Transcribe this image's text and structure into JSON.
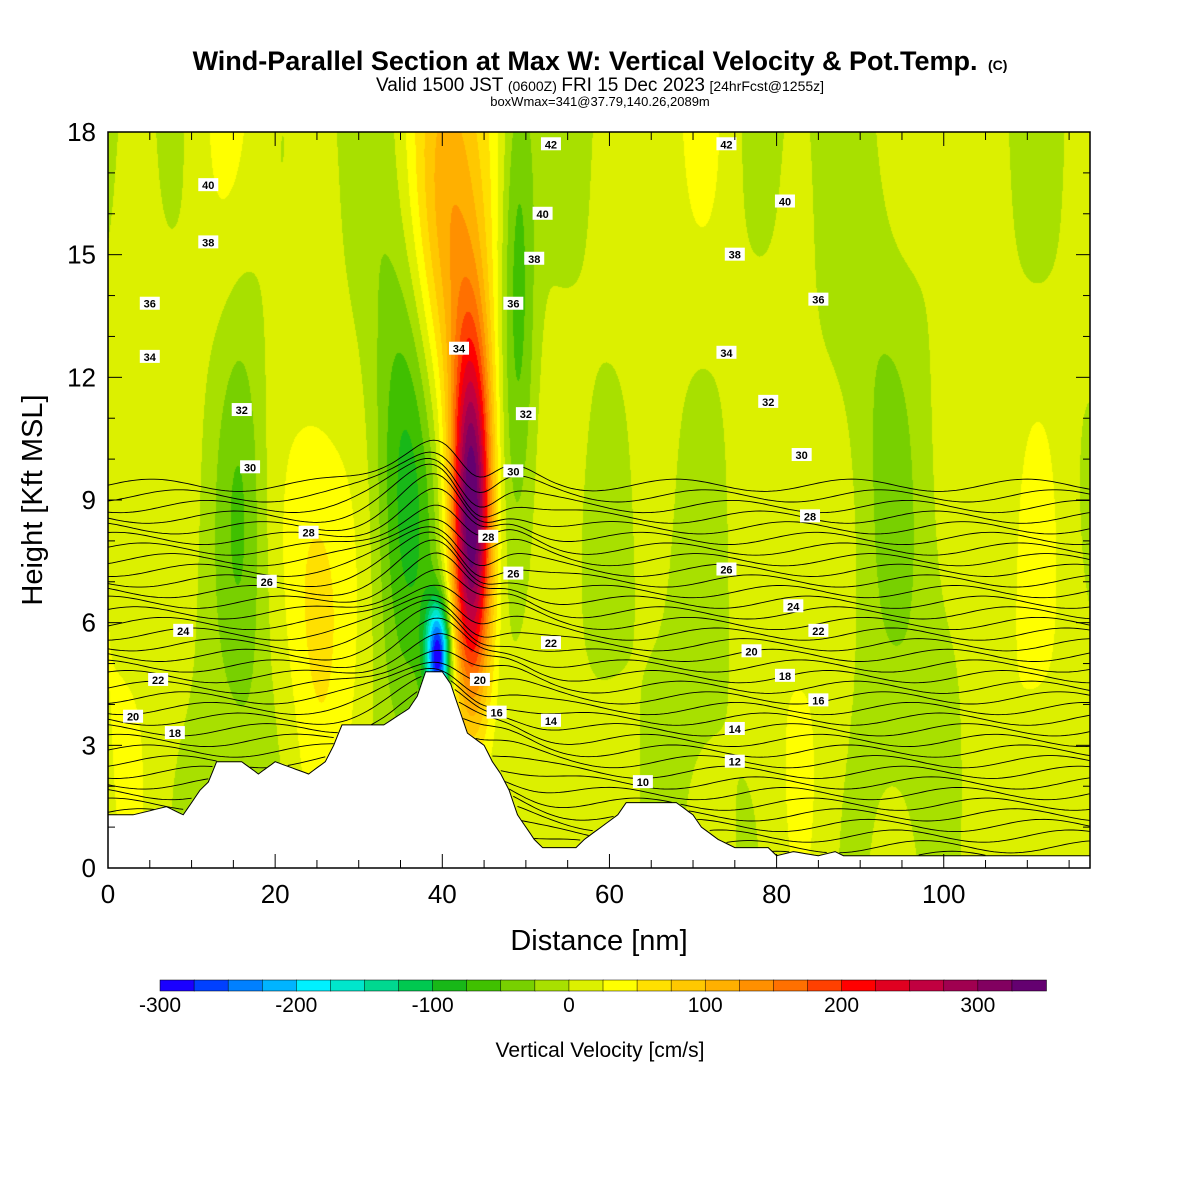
{
  "title": {
    "main": "Wind-Parallel Section at Max W: Vertical Velocity & Pot.Temp.",
    "copyright": "(C)",
    "valid_prefix": "Valid 1500 JST",
    "valid_utc": "(0600Z)",
    "valid_date": "FRI 15 Dec 2023",
    "forecast": "[24hrFcst@1255z]",
    "box_info": "boxWmax=341@37.79,140.26,2089m"
  },
  "chart_data": {
    "type": "heatmap",
    "xlabel": "Distance [nm]",
    "ylabel": "Height [Kft MSL]",
    "xlim": [
      0,
      117.5
    ],
    "ylim": [
      0,
      18
    ],
    "x_ticks": [
      0,
      20,
      40,
      60,
      80,
      100
    ],
    "y_ticks": [
      0,
      3,
      6,
      9,
      12,
      15,
      18
    ],
    "colorbar": {
      "label": "Vertical Velocity [cm/s]",
      "range": [
        -300,
        350
      ],
      "tick_values": [
        -300,
        -200,
        -100,
        0,
        100,
        200,
        300
      ],
      "colors": [
        "#1a00ff",
        "#0040ff",
        "#0080ff",
        "#00b4ff",
        "#00f0ff",
        "#00e6cc",
        "#00d890",
        "#00c850",
        "#18b818",
        "#40c000",
        "#78d000",
        "#a8e000",
        "#dcf000",
        "#ffff00",
        "#ffe000",
        "#ffc800",
        "#ffb000",
        "#ff9000",
        "#ff7000",
        "#ff4000",
        "#ff0000",
        "#e00020",
        "#c00040",
        "#a00050",
        "#820060",
        "#640070"
      ]
    },
    "terrain_kft": [
      [
        0,
        1.3
      ],
      [
        3,
        1.3
      ],
      [
        7,
        1.5
      ],
      [
        9,
        1.3
      ],
      [
        10,
        1.6
      ],
      [
        11,
        1.9
      ],
      [
        12,
        2.1
      ],
      [
        13,
        2.6
      ],
      [
        16,
        2.6
      ],
      [
        18,
        2.3
      ],
      [
        20,
        2.6
      ],
      [
        24,
        2.3
      ],
      [
        26,
        2.6
      ],
      [
        27,
        3.0
      ],
      [
        28,
        3.5
      ],
      [
        33,
        3.5
      ],
      [
        36,
        3.9
      ],
      [
        37,
        4.2
      ],
      [
        38,
        4.8
      ],
      [
        40,
        4.8
      ],
      [
        41,
        4.5
      ],
      [
        42,
        3.9
      ],
      [
        43,
        3.3
      ],
      [
        45,
        3.0
      ],
      [
        46,
        2.6
      ],
      [
        47,
        2.3
      ],
      [
        48,
        1.9
      ],
      [
        49,
        1.3
      ],
      [
        50,
        1.0
      ],
      [
        51,
        0.7
      ],
      [
        52,
        0.5
      ],
      [
        56,
        0.5
      ],
      [
        57,
        0.7
      ],
      [
        59,
        1.0
      ],
      [
        61,
        1.3
      ],
      [
        62,
        1.6
      ],
      [
        68,
        1.6
      ],
      [
        70,
        1.3
      ],
      [
        71,
        1.0
      ],
      [
        73,
        0.7
      ],
      [
        75,
        0.5
      ],
      [
        79,
        0.5
      ],
      [
        80,
        0.3
      ],
      [
        82,
        0.4
      ],
      [
        85,
        0.3
      ],
      [
        87,
        0.4
      ],
      [
        88,
        0.3
      ],
      [
        117.5,
        0.3
      ]
    ],
    "vertical_velocity_features_cm_s": [
      {
        "x": 43.5,
        "z": 8.5,
        "value": 341,
        "sx": 1.7,
        "sz": 3.2
      },
      {
        "x": 41.0,
        "z": 15.8,
        "value": 110,
        "sx": 3.2,
        "sz": 3.8
      },
      {
        "x": 39.5,
        "z": 5.2,
        "value": -280,
        "sx": 1.0,
        "sz": 0.9
      },
      {
        "x": 35.5,
        "z": 9.5,
        "value": -90,
        "sx": 3.0,
        "sz": 4.5
      },
      {
        "x": 49.0,
        "z": 15.0,
        "value": -75,
        "sx": 1.5,
        "sz": 4.0
      },
      {
        "x": 25.0,
        "z": 7.0,
        "value": 45,
        "sx": 2.5,
        "sz": 3.0
      },
      {
        "x": 16.0,
        "z": 9.0,
        "value": -40,
        "sx": 2.0,
        "sz": 4.0
      },
      {
        "x": 92.0,
        "z": 12.0,
        "value": -30,
        "sx": 4.0,
        "sz": 6.0
      },
      {
        "x": 58.0,
        "z": 7.0,
        "value": -30,
        "sx": 3.0,
        "sz": 3.0
      }
    ],
    "potential_temperature_labels": [
      {
        "value": 42,
        "x": 53,
        "z": 17.7
      },
      {
        "value": 42,
        "x": 74,
        "z": 17.7
      },
      {
        "value": 40,
        "x": 12,
        "z": 16.7
      },
      {
        "value": 40,
        "x": 52,
        "z": 16.0
      },
      {
        "value": 40,
        "x": 81,
        "z": 16.3
      },
      {
        "value": 38,
        "x": 12,
        "z": 15.3
      },
      {
        "value": 38,
        "x": 51,
        "z": 14.9
      },
      {
        "value": 38,
        "x": 75,
        "z": 15.0
      },
      {
        "value": 36,
        "x": 5,
        "z": 13.8
      },
      {
        "value": 36,
        "x": 48.5,
        "z": 13.8
      },
      {
        "value": 36,
        "x": 85,
        "z": 13.9
      },
      {
        "value": 34,
        "x": 5,
        "z": 12.5
      },
      {
        "value": 34,
        "x": 42,
        "z": 12.7
      },
      {
        "value": 34,
        "x": 74,
        "z": 12.6
      },
      {
        "value": 32,
        "x": 16,
        "z": 11.2
      },
      {
        "value": 32,
        "x": 50,
        "z": 11.1
      },
      {
        "value": 32,
        "x": 79,
        "z": 11.4
      },
      {
        "value": 30,
        "x": 17,
        "z": 9.8
      },
      {
        "value": 30,
        "x": 48.5,
        "z": 9.7
      },
      {
        "value": 30,
        "x": 83,
        "z": 10.1
      },
      {
        "value": 28,
        "x": 24,
        "z": 8.2
      },
      {
        "value": 28,
        "x": 45.5,
        "z": 8.1
      },
      {
        "value": 28,
        "x": 84,
        "z": 8.6
      },
      {
        "value": 26,
        "x": 19,
        "z": 7.0
      },
      {
        "value": 26,
        "x": 48.5,
        "z": 7.2
      },
      {
        "value": 26,
        "x": 74,
        "z": 7.3
      },
      {
        "value": 24,
        "x": 9,
        "z": 5.8
      },
      {
        "value": 24,
        "x": 82,
        "z": 6.4
      },
      {
        "value": 22,
        "x": 6,
        "z": 4.6
      },
      {
        "value": 22,
        "x": 53,
        "z": 5.5
      },
      {
        "value": 22,
        "x": 85,
        "z": 5.8
      },
      {
        "value": 20,
        "x": 3,
        "z": 3.7
      },
      {
        "value": 20,
        "x": 44.5,
        "z": 4.6
      },
      {
        "value": 20,
        "x": 77,
        "z": 5.3
      },
      {
        "value": 18,
        "x": 8,
        "z": 3.3
      },
      {
        "value": 18,
        "x": 81,
        "z": 4.7
      },
      {
        "value": 16,
        "x": 46.5,
        "z": 3.8
      },
      {
        "value": 16,
        "x": 85,
        "z": 4.1
      },
      {
        "value": 14,
        "x": 53,
        "z": 3.6
      },
      {
        "value": 14,
        "x": 75,
        "z": 3.4
      },
      {
        "value": 12,
        "x": 75,
        "z": 2.6
      },
      {
        "value": 10,
        "x": 64,
        "z": 2.1
      }
    ]
  }
}
